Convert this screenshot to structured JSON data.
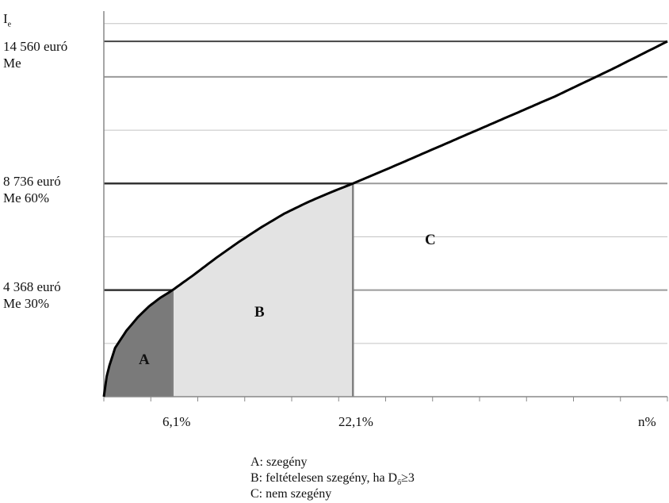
{
  "chart_data": {
    "type": "area",
    "y_axis_title": "I",
    "y_axis_title_sub": "e",
    "x_axis_title": "n%",
    "y_ticks": [
      {
        "value": 14560,
        "label": "14 560 euró",
        "sublabel": "Me"
      },
      {
        "value": 8736,
        "label": "8 736 euró",
        "sublabel": "Me 60%"
      },
      {
        "value": 4368,
        "label": "4 368 euró",
        "sublabel": "Me 30%"
      }
    ],
    "x_ticks": [
      {
        "value": 6.1,
        "label": "6,1%"
      },
      {
        "value": 22.1,
        "label": "22,1%"
      }
    ],
    "curve": {
      "x": [
        0,
        0.3,
        1,
        2,
        3,
        4,
        5,
        6.1,
        8,
        10,
        12,
        14,
        16,
        18,
        20,
        22.1,
        25,
        30,
        35,
        40,
        45,
        50
      ],
      "y": [
        0,
        1000,
        2000,
        2700,
        3250,
        3700,
        4050,
        4368,
        5000,
        5700,
        6350,
        6950,
        7500,
        7950,
        8350,
        8736,
        9300,
        10300,
        11300,
        12300,
        13400,
        14560
      ]
    },
    "regions": [
      {
        "label": "A",
        "x_from": 0,
        "x_to": 6.1,
        "color": "#7a7a7a"
      },
      {
        "label": "B",
        "x_from": 6.1,
        "x_to": 22.1,
        "color": "#e3e3e3"
      },
      {
        "label": "C",
        "x_from": 22.1,
        "x_to": 50,
        "color": "#ffffff"
      }
    ],
    "xlim": [
      0,
      50
    ],
    "ylim": [
      0,
      15800
    ],
    "grid": true,
    "legend": [
      "A: szegény",
      "B: feltételesen szegény, ha D",
      "C: nem szegény"
    ],
    "legend_b_sub": "ő",
    "legend_b_suffix": "≥3"
  }
}
